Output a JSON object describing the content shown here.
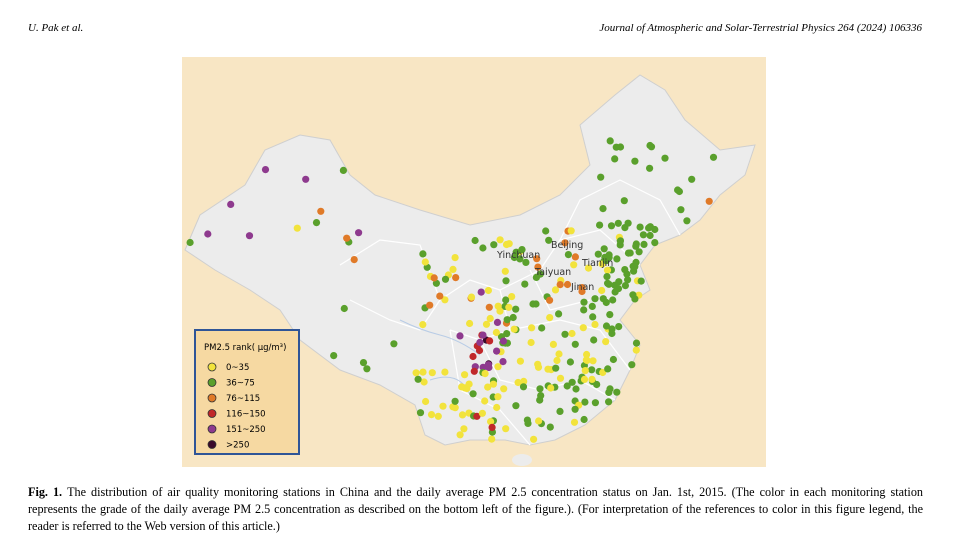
{
  "header": {
    "authors": "U. Pak et al.",
    "journal": "Journal of Atmospheric and Solar-Terrestrial Physics 264 (2024) 106336"
  },
  "figure": {
    "city_labels": [
      "Yinchuan",
      "Beijing",
      "Tianjin",
      "Taiyuan",
      "Jinan"
    ],
    "legend": {
      "title": "PM2.5 rank( μg/m³)",
      "items": [
        "0~35",
        "36~75",
        "76~115",
        "116~150",
        "151~250",
        ">250"
      ]
    }
  },
  "caption": {
    "label": "Fig. 1.",
    "text": "The distribution of air quality monitoring stations in China and the daily average PM 2.5 concentration status on Jan. 1st, 2015. (The color in each monitoring station represents the grade of the daily average PM 2.5 concentration as described on the bottom left of the figure.). (For interpretation of the references to color in this figure legend, the reader is referred to the Web version of this article.)"
  }
}
